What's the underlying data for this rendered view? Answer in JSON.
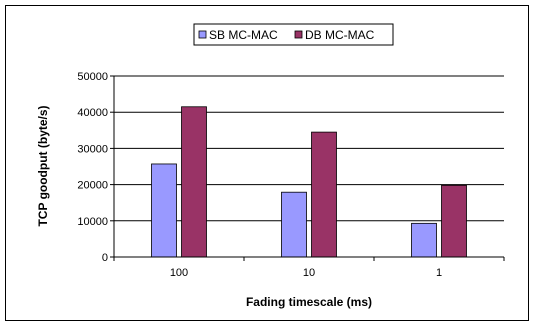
{
  "chart_data": {
    "type": "bar",
    "categories": [
      "100",
      "10",
      "1"
    ],
    "series": [
      {
        "name": "SB MC-MAC",
        "values": [
          25700,
          17900,
          9300
        ],
        "color": "#9999ff"
      },
      {
        "name": "DB MC-MAC",
        "values": [
          41500,
          34500,
          19800
        ],
        "color": "#993366"
      }
    ],
    "xlabel": "Fading timescale (ms)",
    "ylabel": "TCP goodput (byte/s)",
    "ylim": [
      0,
      50000
    ],
    "yticks": [
      0,
      10000,
      20000,
      30000,
      40000,
      50000
    ],
    "grid": true,
    "legend_position": "top"
  }
}
